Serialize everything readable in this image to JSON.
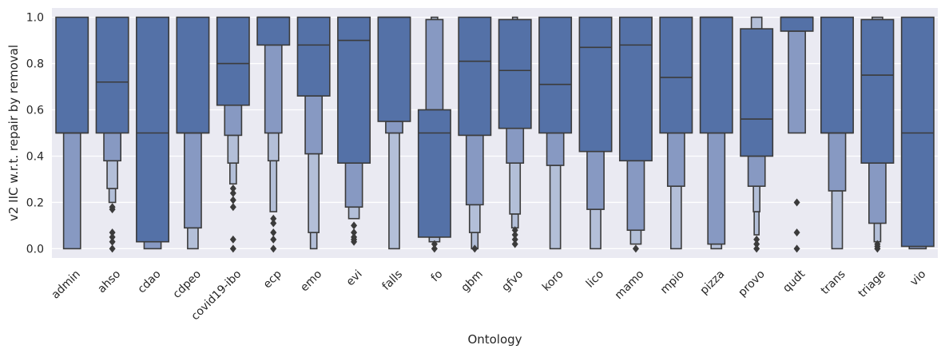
{
  "chart_data": {
    "type": "boxen",
    "xlabel": "Ontology",
    "ylabel": "v2 IIC w.r.t. repair by removal",
    "ylim": [
      -0.04,
      1.04
    ],
    "yticks": [
      0.0,
      0.2,
      0.4,
      0.6,
      0.8,
      1.0
    ],
    "ytick_labels": [
      "0.0",
      "0.2",
      "0.4",
      "0.6",
      "0.8",
      "1.0"
    ],
    "grid": true,
    "colors": {
      "background": "#eaeaf2",
      "grid": "#ffffff",
      "box_level1": "#5471a7",
      "box_level2": "#8799c2",
      "box_level3": "#b3bfd8",
      "edge": "#3b3b3b"
    },
    "categories": [
      {
        "name": "admin",
        "median": 0.5,
        "boxes": [
          [
            0.5,
            1.0
          ],
          [
            0.0,
            0.5
          ]
        ],
        "outliers": []
      },
      {
        "name": "ahso",
        "median": 0.72,
        "boxes": [
          [
            0.5,
            1.0
          ],
          [
            0.38,
            0.5
          ],
          [
            0.26,
            0.38
          ],
          [
            0.2,
            0.26
          ]
        ],
        "outliers": [
          0.17,
          0.18,
          0.07,
          0.05,
          0.03,
          0.0
        ]
      },
      {
        "name": "cdao",
        "median": 0.5,
        "boxes": [
          [
            0.03,
            1.0
          ],
          [
            0.0,
            0.03
          ]
        ],
        "outliers": []
      },
      {
        "name": "cdpeo",
        "median": 0.5,
        "boxes": [
          [
            0.5,
            1.0
          ],
          [
            0.09,
            0.5
          ],
          [
            0.0,
            0.09
          ]
        ],
        "outliers": []
      },
      {
        "name": "covid19-ibo",
        "median": 0.8,
        "boxes": [
          [
            0.62,
            1.0
          ],
          [
            0.49,
            0.62
          ],
          [
            0.37,
            0.49
          ],
          [
            0.28,
            0.37
          ]
        ],
        "outliers": [
          0.26,
          0.24,
          0.21,
          0.18,
          0.04,
          0.0
        ]
      },
      {
        "name": "ecp",
        "median": 1.0,
        "boxes": [
          [
            0.88,
            1.0
          ],
          [
            0.5,
            0.88
          ],
          [
            0.38,
            0.5
          ],
          [
            0.16,
            0.38
          ]
        ],
        "outliers": [
          0.13,
          0.11,
          0.07,
          0.04,
          0.0
        ]
      },
      {
        "name": "emo",
        "median": 0.88,
        "boxes": [
          [
            0.66,
            1.0
          ],
          [
            0.41,
            0.66
          ],
          [
            0.07,
            0.41
          ],
          [
            0.0,
            0.07
          ]
        ],
        "outliers": []
      },
      {
        "name": "evi",
        "median": 0.9,
        "boxes": [
          [
            0.37,
            1.0
          ],
          [
            0.18,
            0.37
          ],
          [
            0.13,
            0.18
          ]
        ],
        "outliers": [
          0.1,
          0.07,
          0.05,
          0.04,
          0.03
        ]
      },
      {
        "name": "falls",
        "median": 1.0,
        "boxes": [
          [
            0.55,
            1.0
          ],
          [
            0.5,
            0.55
          ],
          [
            0.0,
            0.5
          ]
        ],
        "outliers": []
      },
      {
        "name": "fo",
        "median": 0.5,
        "boxes": [
          [
            0.05,
            0.6
          ],
          [
            0.6,
            0.99
          ],
          [
            0.03,
            0.05
          ],
          [
            0.99,
            1.0
          ]
        ],
        "outliers": [
          0.02,
          0.0
        ]
      },
      {
        "name": "gbm",
        "median": 0.81,
        "boxes": [
          [
            0.49,
            1.0
          ],
          [
            0.19,
            0.49
          ],
          [
            0.07,
            0.19
          ],
          [
            0.0,
            0.07
          ]
        ],
        "outliers": [
          0.0
        ]
      },
      {
        "name": "gfvo",
        "median": 0.77,
        "boxes": [
          [
            0.52,
            0.99
          ],
          [
            0.37,
            0.52
          ],
          [
            0.15,
            0.37
          ],
          [
            0.09,
            0.15
          ],
          [
            0.99,
            1.0
          ]
        ],
        "outliers": [
          0.08,
          0.06,
          0.04,
          0.02
        ]
      },
      {
        "name": "koro",
        "median": 0.71,
        "boxes": [
          [
            0.5,
            1.0
          ],
          [
            0.36,
            0.5
          ],
          [
            0.0,
            0.36
          ]
        ],
        "outliers": []
      },
      {
        "name": "lico",
        "median": 0.87,
        "boxes": [
          [
            0.42,
            1.0
          ],
          [
            0.17,
            0.42
          ],
          [
            0.0,
            0.17
          ]
        ],
        "outliers": []
      },
      {
        "name": "mamo",
        "median": 0.88,
        "boxes": [
          [
            0.38,
            1.0
          ],
          [
            0.08,
            0.38
          ],
          [
            0.02,
            0.08
          ]
        ],
        "outliers": [
          0.0
        ]
      },
      {
        "name": "mpio",
        "median": 0.74,
        "boxes": [
          [
            0.5,
            1.0
          ],
          [
            0.27,
            0.5
          ],
          [
            0.0,
            0.27
          ]
        ],
        "outliers": []
      },
      {
        "name": "pizza",
        "median": 1.0,
        "boxes": [
          [
            0.5,
            1.0
          ],
          [
            0.02,
            0.5
          ],
          [
            0.0,
            0.02
          ]
        ],
        "outliers": []
      },
      {
        "name": "provo",
        "median": 0.56,
        "boxes": [
          [
            0.4,
            0.95
          ],
          [
            0.27,
            0.4
          ],
          [
            0.95,
            1.0
          ],
          [
            0.16,
            0.27
          ],
          [
            0.06,
            0.16
          ]
        ],
        "outliers": [
          0.04,
          0.02,
          0.0
        ]
      },
      {
        "name": "qudt",
        "median": 1.0,
        "boxes": [
          [
            0.94,
            1.0
          ],
          [
            0.5,
            0.94
          ]
        ],
        "outliers": [
          0.2,
          0.07,
          0.0
        ]
      },
      {
        "name": "trans",
        "median": 0.5,
        "boxes": [
          [
            0.5,
            1.0
          ],
          [
            0.25,
            0.5
          ],
          [
            0.0,
            0.25
          ]
        ],
        "outliers": []
      },
      {
        "name": "triage",
        "median": 0.75,
        "boxes": [
          [
            0.37,
            0.99
          ],
          [
            0.11,
            0.37
          ],
          [
            0.99,
            1.0
          ],
          [
            0.03,
            0.11
          ]
        ],
        "outliers": [
          0.02,
          0.01,
          0.0
        ]
      },
      {
        "name": "vio",
        "median": 0.5,
        "boxes": [
          [
            0.01,
            1.0
          ],
          [
            0.0,
            0.01
          ]
        ],
        "outliers": []
      }
    ]
  }
}
